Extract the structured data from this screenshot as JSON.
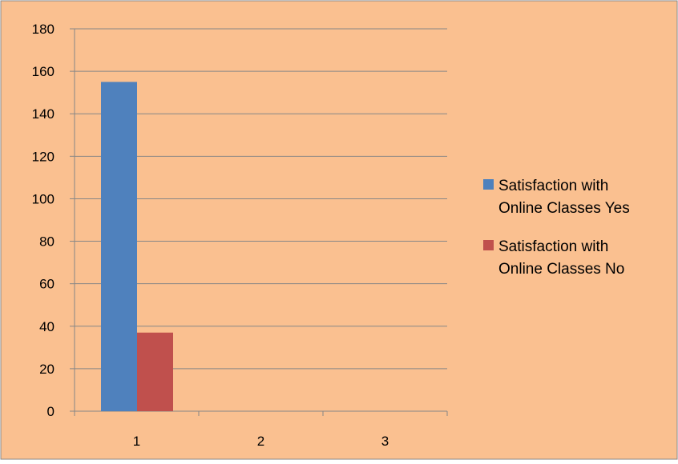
{
  "chart_data": {
    "type": "bar",
    "categories": [
      "1",
      "2",
      "3"
    ],
    "series": [
      {
        "name": "Satisfaction with Online Classes Yes",
        "values": [
          155,
          0,
          0
        ],
        "color": "#4f81bd"
      },
      {
        "name": "Satisfaction with Online Classes No",
        "values": [
          37,
          0,
          0
        ],
        "color": "#c0504d"
      }
    ],
    "ylim": [
      0,
      180
    ],
    "yticks": [
      "0",
      "20",
      "40",
      "60",
      "80",
      "100",
      "120",
      "140",
      "160",
      "180"
    ],
    "grid": true,
    "legend_position": "right",
    "legend_lines": [
      [
        "Satisfaction with",
        "Online Classes Yes"
      ],
      [
        "Satisfaction with",
        "Online Classes No"
      ]
    ],
    "background_color": "#fac090",
    "gridline_color": "#868686"
  }
}
